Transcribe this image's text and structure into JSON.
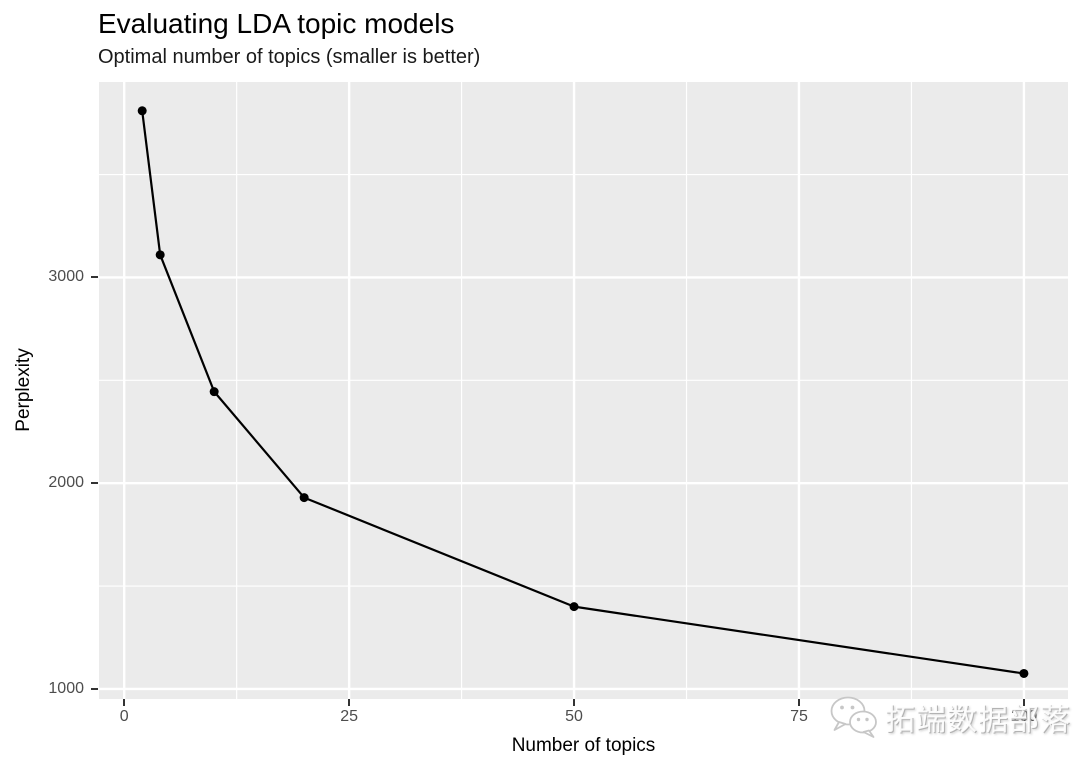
{
  "title": "Evaluating LDA topic models",
  "subtitle": "Optimal number of topics (smaller is better)",
  "watermark": {
    "icon": "wechat-chat-bubbles-icon",
    "text": "拓端数据部落"
  },
  "chart_data": {
    "type": "line",
    "title": "Evaluating LDA topic models",
    "subtitle": "Optimal number of topics (smaller is better)",
    "xlabel": "Number of topics",
    "ylabel": "Perplexity",
    "x": [
      2,
      4,
      10,
      20,
      50,
      100
    ],
    "y": [
      3810,
      3110,
      2445,
      1930,
      1400,
      1075
    ],
    "xlim": [
      -2.8,
      104.9
    ],
    "ylim": [
      951,
      3950
    ],
    "x_major_ticks": [
      0,
      25,
      50,
      75,
      100
    ],
    "x_minor_ticks": [
      12.5,
      37.5,
      62.5,
      87.5
    ],
    "y_major_ticks": [
      1000,
      2000,
      3000
    ],
    "y_minor_ticks": [
      1500,
      2500,
      3500
    ],
    "grid": true,
    "legend": "none",
    "style": {
      "panel_bg": "#EBEBEB",
      "grid_color": "#FFFFFF",
      "line_color": "#000000",
      "point_color": "#000000",
      "tick_label_color": "#4D4D4D",
      "tick_mark_color": "#333333",
      "point_radius": 4.5,
      "line_width": 2.2,
      "major_grid_width": 2.4,
      "minor_grid_width": 1.2
    }
  }
}
